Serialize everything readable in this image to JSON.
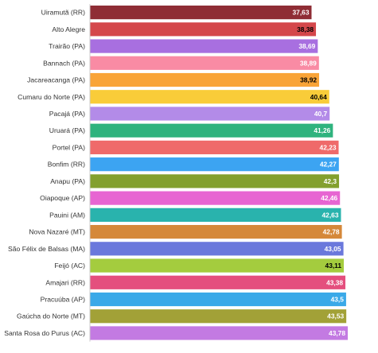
{
  "chart_data": {
    "type": "bar",
    "orientation": "horizontal",
    "title": "",
    "xlabel": "",
    "ylabel": "",
    "grid": false,
    "legend": "none",
    "categories": [
      "Uiramutã (RR)",
      "Alto Alegre",
      "Trairão (PA)",
      "Bannach (PA)",
      "Jacareacanga (PA)",
      "Cumaru do Norte (PA)",
      "Pacajá (PA)",
      "Uruará (PA)",
      "Portel (PA)",
      "Bonfim (RR)",
      "Anapu (PA)",
      "Oiapoque (AP)",
      "Pauini (AM)",
      "Nova Nazaré (MT)",
      "São Félix de Balsas (MA)",
      "Feijó (AC)",
      "Amajari (RR)",
      "Pracuúba (AP)",
      "Gaúcha do Norte (MT)",
      "Santa Rosa do Purus (AC)"
    ],
    "values": [
      37.63,
      38.38,
      38.69,
      38.89,
      38.92,
      40.64,
      40.7,
      41.26,
      42.23,
      42.27,
      42.3,
      42.46,
      42.63,
      42.78,
      43.05,
      43.11,
      43.38,
      43.5,
      43.53,
      43.78
    ],
    "value_labels": [
      "37,63",
      "38,38",
      "38,69",
      "38,89",
      "38,92",
      "40,64",
      "40,7",
      "41,26",
      "42,23",
      "42,27",
      "42,3",
      "42,46",
      "42,63",
      "42,78",
      "43,05",
      "43,11",
      "43,38",
      "43,5",
      "43,53",
      "43,78"
    ],
    "colors": [
      "#8f2d35",
      "#d4474b",
      "#a86fe0",
      "#f98ba4",
      "#f9a437",
      "#f9cc39",
      "#b38be8",
      "#2fb37e",
      "#ef6a6a",
      "#3ca4f2",
      "#83a02e",
      "#e765d2",
      "#29b3ad",
      "#d5883a",
      "#6a78dc",
      "#a4cc3e",
      "#e44f7e",
      "#3aa9e8",
      "#a2a137",
      "#c37ae2"
    ],
    "value_label_colors": [
      "#ffffff",
      "#000000",
      "#ffffff",
      "#ffffff",
      "#000000",
      "#000000",
      "#ffffff",
      "#ffffff",
      "#ffffff",
      "#ffffff",
      "#ffffff",
      "#ffffff",
      "#ffffff",
      "#ffffff",
      "#ffffff",
      "#000000",
      "#ffffff",
      "#ffffff",
      "#ffffff",
      "#ffffff"
    ]
  }
}
